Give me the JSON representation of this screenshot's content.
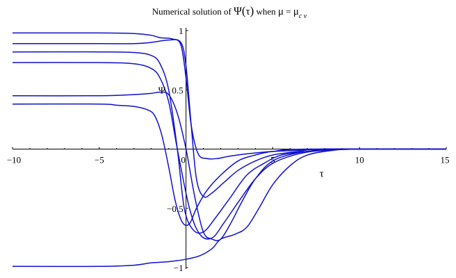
{
  "chart_data": {
    "type": "line",
    "title": {
      "prefix": "Numerical solution of ",
      "psi": "Ψ",
      "lparen": "(",
      "tau": "τ",
      "rparen": ")",
      "when": " when ",
      "mu": "μ",
      "eq": " = ",
      "mu2": "μ",
      "sub": "c v"
    },
    "xlabel": "τ",
    "ylabel": "Ψ",
    "xlim": [
      -10,
      15
    ],
    "ylim": [
      -1,
      1
    ],
    "xticks": [
      {
        "v": -10,
        "label": "−10"
      },
      {
        "v": -5,
        "label": "−5"
      },
      {
        "v": 0,
        "label": "0"
      },
      {
        "v": 5,
        "label": "5"
      },
      {
        "v": 10,
        "label": "10"
      },
      {
        "v": 15,
        "label": "15"
      }
    ],
    "yticks": [
      {
        "v": 1,
        "label": "1"
      },
      {
        "v": 0.5,
        "label": "0.5"
      },
      {
        "v": -0.5,
        "label": "−0.5"
      },
      {
        "v": -1,
        "label": "−1"
      }
    ],
    "line_color": "#1010cc",
    "grid": false,
    "series": [
      {
        "points": [
          [
            -10,
            0.98
          ],
          [
            -5,
            0.98
          ],
          [
            -3,
            0.975
          ],
          [
            -2,
            0.96
          ],
          [
            -1.5,
            0.94
          ],
          [
            -0.8,
            0.93
          ],
          [
            -0.3,
            0.88
          ],
          [
            0,
            0.6
          ],
          [
            0.3,
            0.2
          ],
          [
            0.7,
            -0.04
          ],
          [
            1.2,
            -0.08
          ],
          [
            1.8,
            -0.08
          ],
          [
            2.5,
            -0.06
          ],
          [
            3.5,
            -0.04
          ],
          [
            5,
            -0.02
          ],
          [
            6.5,
            -0.01
          ],
          [
            8,
            0
          ],
          [
            10,
            0
          ],
          [
            15,
            0
          ]
        ]
      },
      {
        "points": [
          [
            -10,
            0.89
          ],
          [
            -5,
            0.89
          ],
          [
            -3,
            0.89
          ],
          [
            -2,
            0.9
          ],
          [
            -1,
            0.92
          ],
          [
            -0.3,
            0.9
          ],
          [
            0,
            0.7
          ],
          [
            0.3,
            0.2
          ],
          [
            0.6,
            -0.25
          ],
          [
            1,
            -0.4
          ],
          [
            1.5,
            -0.37
          ],
          [
            2.2,
            -0.28
          ],
          [
            3,
            -0.18
          ],
          [
            4,
            -0.1
          ],
          [
            5,
            -0.05
          ],
          [
            6.5,
            -0.02
          ],
          [
            8,
            0
          ],
          [
            15,
            0
          ]
        ]
      },
      {
        "points": [
          [
            -10,
            0.82
          ],
          [
            -5,
            0.82
          ],
          [
            -3,
            0.815
          ],
          [
            -2,
            0.79
          ],
          [
            -1.5,
            0.72
          ],
          [
            -1,
            0.5
          ],
          [
            -0.5,
            0.0
          ],
          [
            -0.1,
            -0.5
          ],
          [
            0.4,
            -0.68
          ],
          [
            1,
            -0.7
          ],
          [
            1.7,
            -0.58
          ],
          [
            2.5,
            -0.42
          ],
          [
            3.5,
            -0.22
          ],
          [
            4.5,
            -0.12
          ],
          [
            5.5,
            -0.05
          ],
          [
            7,
            -0.02
          ],
          [
            8.5,
            0
          ],
          [
            15,
            0
          ]
        ]
      },
      {
        "points": [
          [
            -10,
            0.73
          ],
          [
            -5,
            0.73
          ],
          [
            -3,
            0.72
          ],
          [
            -2,
            0.68
          ],
          [
            -1.5,
            0.6
          ],
          [
            -1,
            0.4
          ],
          [
            -0.5,
            0.0
          ],
          [
            0.2,
            -0.5
          ],
          [
            0.8,
            -0.72
          ],
          [
            1.5,
            -0.75
          ],
          [
            2.2,
            -0.62
          ],
          [
            3,
            -0.45
          ],
          [
            4,
            -0.25
          ],
          [
            5,
            -0.12
          ],
          [
            6.5,
            -0.04
          ],
          [
            8,
            -0.01
          ],
          [
            10,
            0
          ],
          [
            15,
            0
          ]
        ]
      },
      {
        "points": [
          [
            -10,
            0.45
          ],
          [
            -5,
            0.45
          ],
          [
            -3,
            0.46
          ],
          [
            -2,
            0.47
          ],
          [
            -1.5,
            0.48
          ],
          [
            -1,
            0.46
          ],
          [
            -0.5,
            0.3
          ],
          [
            0,
            0.0
          ],
          [
            0.5,
            -0.4
          ],
          [
            1,
            -0.7
          ],
          [
            1.5,
            -0.76
          ],
          [
            2,
            -0.76
          ],
          [
            2.6,
            -0.62
          ],
          [
            3.2,
            -0.45
          ],
          [
            4,
            -0.25
          ],
          [
            5,
            -0.1
          ],
          [
            6.5,
            -0.03
          ],
          [
            8,
            -0.01
          ],
          [
            10,
            0
          ],
          [
            15,
            0
          ]
        ]
      },
      {
        "points": [
          [
            -10,
            0.38
          ],
          [
            -5,
            0.38
          ],
          [
            -4,
            0.37
          ],
          [
            -3,
            0.36
          ],
          [
            -2.2,
            0.33
          ],
          [
            -1.8,
            0.28
          ],
          [
            -1.4,
            0.12
          ],
          [
            -1,
            -0.15
          ],
          [
            -0.6,
            -0.45
          ],
          [
            -0.2,
            -0.62
          ],
          [
            0.2,
            -0.63
          ],
          [
            0.6,
            -0.5
          ],
          [
            1.2,
            -0.35
          ],
          [
            2,
            -0.22
          ],
          [
            3,
            -0.1
          ],
          [
            4,
            -0.05
          ],
          [
            5,
            -0.02
          ],
          [
            7,
            0
          ],
          [
            15,
            0
          ]
        ]
      },
      {
        "points": [
          [
            -10,
            -0.99
          ],
          [
            -5,
            -0.99
          ],
          [
            -3,
            -0.98
          ],
          [
            -2,
            -0.96
          ],
          [
            -1,
            -0.95
          ],
          [
            0,
            -0.93
          ],
          [
            0.8,
            -0.9
          ],
          [
            1.5,
            -0.84
          ],
          [
            2,
            -0.76
          ],
          [
            2.8,
            -0.72
          ],
          [
            3.5,
            -0.66
          ],
          [
            4.2,
            -0.5
          ],
          [
            5,
            -0.3
          ],
          [
            6,
            -0.14
          ],
          [
            7,
            -0.05
          ],
          [
            8.5,
            -0.01
          ],
          [
            10,
            0
          ],
          [
            15,
            0
          ]
        ]
      }
    ]
  }
}
